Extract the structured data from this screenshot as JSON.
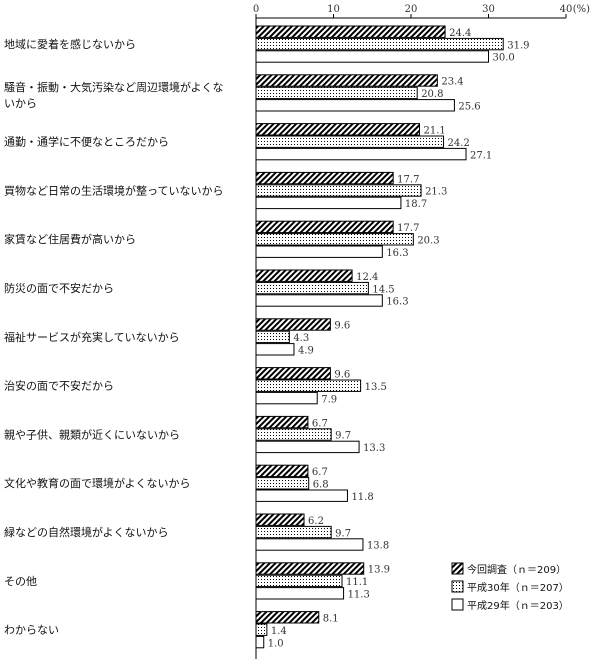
{
  "chart_data": {
    "type": "bar",
    "orientation": "horizontal",
    "unit": "(%)",
    "xlim": [
      0,
      40
    ],
    "xticks": [
      "0",
      "10",
      "20",
      "30",
      "40"
    ],
    "categories": [
      [
        "地域に愛着を感じないから"
      ],
      [
        "騒音・振動・大気汚染など周辺環境がよくな",
        "いから"
      ],
      [
        "通勤・通学に不便なところだから"
      ],
      [
        "買物など日常の生活環境が整っていないから"
      ],
      [
        "家賃など住居費が高いから"
      ],
      [
        "防災の面で不安だから"
      ],
      [
        "福祉サービスが充実していないから"
      ],
      [
        "治安の面で不安だから"
      ],
      [
        "親や子供、親類が近くにいないから"
      ],
      [
        "文化や教育の面で環境がよくないから"
      ],
      [
        "緑などの自然環境がよくないから"
      ],
      [
        "その他"
      ],
      [
        "わからない"
      ]
    ],
    "series": [
      {
        "name": "今回調査（ｎ＝209）",
        "values": [
          24.4,
          23.4,
          21.1,
          17.7,
          17.7,
          12.4,
          9.6,
          9.6,
          6.7,
          6.7,
          6.2,
          13.9,
          8.1
        ],
        "labels": [
          "24.4",
          "23.4",
          "21.1",
          "17.7",
          "17.7",
          "12.4",
          "9.6",
          "9.6",
          "6.7",
          "6.7",
          "6.2",
          "13.9",
          "8.1"
        ],
        "pattern": "hatch"
      },
      {
        "name": "平成30年（ｎ＝207）",
        "values": [
          31.9,
          20.8,
          24.2,
          21.3,
          20.3,
          14.5,
          4.3,
          13.5,
          9.7,
          6.8,
          9.7,
          11.1,
          1.4
        ],
        "labels": [
          "31.9",
          "20.8",
          "24.2",
          "21.3",
          "20.3",
          "14.5",
          "4.3",
          "13.5",
          "9.7",
          "6.8",
          "9.7",
          "11.1",
          "1.4"
        ],
        "pattern": "dots"
      },
      {
        "name": "平成29年（ｎ＝203）",
        "values": [
          30.0,
          25.6,
          27.1,
          18.7,
          16.3,
          16.3,
          4.9,
          7.9,
          13.3,
          11.8,
          13.8,
          11.3,
          1.0
        ],
        "labels": [
          "30.0",
          "25.6",
          "27.1",
          "18.7",
          "16.3",
          "16.3",
          "4.9",
          "7.9",
          "13.3",
          "11.8",
          "13.8",
          "11.3",
          "1.0"
        ],
        "pattern": "white"
      }
    ],
    "legend_position": "bottom-right",
    "colors": {
      "stroke": "#000000",
      "fill": "#ffffff",
      "hatch": "#000000",
      "dots": "#000000"
    }
  }
}
